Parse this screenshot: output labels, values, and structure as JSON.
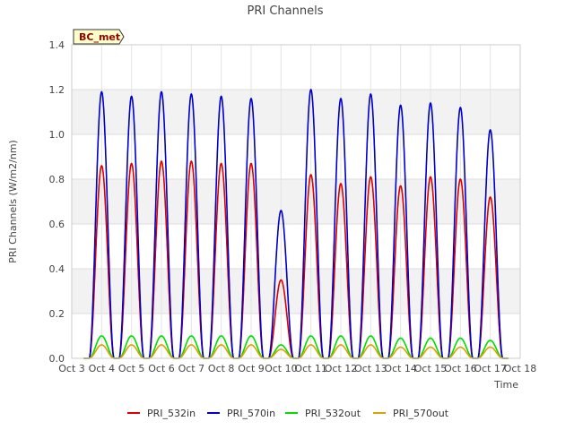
{
  "chart_data": {
    "type": "line",
    "title": "PRI Channels",
    "xlabel": "Time",
    "ylabel": "PRI Channels (W/m2/nm)",
    "ylim": [
      0,
      1.4
    ],
    "xlim": [
      3,
      18
    ],
    "yticks": [
      0.0,
      0.2,
      0.4,
      0.6,
      0.8,
      1.0,
      1.2,
      1.4
    ],
    "ytick_labels": [
      "0.0",
      "0.2",
      "0.4",
      "0.6",
      "0.8",
      "1.0",
      "1.2",
      "1.4"
    ],
    "xticks": [
      3,
      4,
      5,
      6,
      7,
      8,
      9,
      10,
      11,
      12,
      13,
      14,
      15,
      16,
      17,
      18
    ],
    "xtick_labels": [
      "Oct 3",
      "Oct 4",
      "Oct 5",
      "Oct 6",
      "Oct 7",
      "Oct 8",
      "Oct 9",
      "Oct 10",
      "Oct 11",
      "Oct 12",
      "Oct 13",
      "Oct 14",
      "Oct 15",
      "Oct 16",
      "Oct 17",
      "Oct 18"
    ],
    "site_label": "BC_met",
    "legend_position": "bottom-center",
    "grid": true,
    "daily_peak_day_center": [
      4.0,
      5.0,
      6.0,
      7.0,
      8.0,
      9.0,
      10.0,
      11.0,
      12.0,
      13.0,
      14.0,
      15.0,
      16.0,
      17.0
    ],
    "series": [
      {
        "name": "PRI_532in",
        "color": "#dd0000",
        "daily_peaks": [
          0.86,
          0.87,
          0.88,
          0.88,
          0.87,
          0.87,
          0.35,
          0.82,
          0.78,
          0.81,
          0.77,
          0.81,
          0.8,
          0.72
        ]
      },
      {
        "name": "PRI_570in",
        "color": "#0000cc",
        "daily_peaks": [
          1.19,
          1.17,
          1.19,
          1.18,
          1.17,
          1.16,
          0.66,
          1.2,
          1.16,
          1.18,
          1.13,
          1.14,
          1.12,
          1.02
        ]
      },
      {
        "name": "PRI_532out",
        "color": "#00dd00",
        "daily_peaks": [
          0.1,
          0.1,
          0.1,
          0.1,
          0.1,
          0.1,
          0.06,
          0.1,
          0.1,
          0.1,
          0.09,
          0.09,
          0.09,
          0.08
        ]
      },
      {
        "name": "PRI_570out",
        "color": "#e0a000",
        "daily_peaks": [
          0.06,
          0.06,
          0.06,
          0.06,
          0.06,
          0.06,
          0.04,
          0.06,
          0.06,
          0.06,
          0.05,
          0.05,
          0.05,
          0.05
        ]
      }
    ]
  }
}
